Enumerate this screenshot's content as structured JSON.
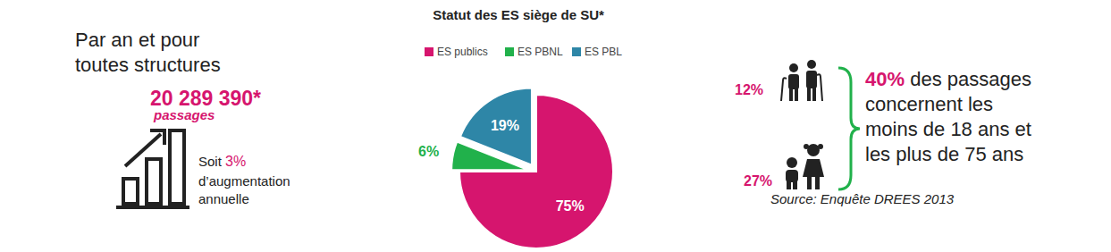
{
  "chart_data": {
    "type": "pie",
    "title": "Statut des ES siège de SU*",
    "categories": [
      "ES publics",
      "ES PBNL",
      "ES PBL"
    ],
    "values": [
      75,
      6,
      19
    ],
    "value_labels": [
      "75%",
      "6%",
      "19%"
    ],
    "colors": [
      "#d6156e",
      "#21b14b",
      "#2e86a7"
    ],
    "data_labels": true,
    "legend": "top"
  },
  "left": {
    "heading": [
      "Par an et pour",
      "toutes structures"
    ],
    "total": "20 289 390*",
    "total_unit": "passages",
    "growth": {
      "lead": "Soit ",
      "highlight": "3%",
      "lines": [
        "d’augmentation",
        "annuelle"
      ]
    }
  },
  "right": {
    "elderly_share": "12%",
    "children_share": "27%",
    "summary": {
      "highlight": "40%",
      "lines": [
        " des passages",
        "concernent les",
        "moins de 18 ans et",
        "les plus de 75 ans"
      ]
    },
    "source": "Source: Enquête DREES 2013"
  }
}
